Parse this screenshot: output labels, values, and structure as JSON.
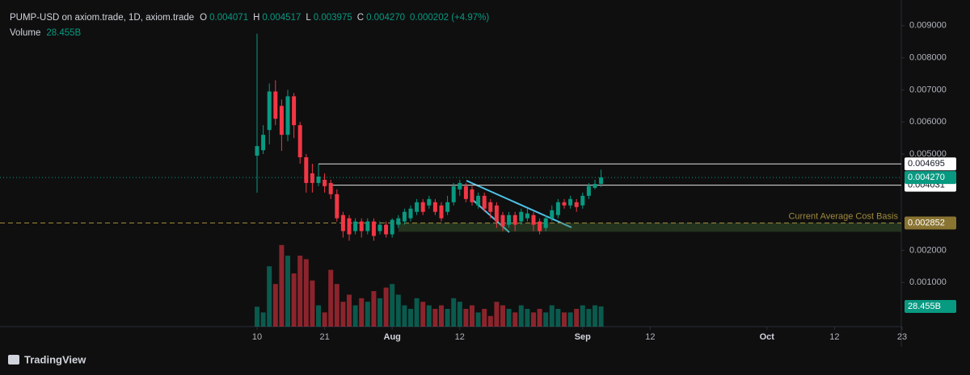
{
  "chart_data": {
    "type": "candlestick",
    "title": "PUMP-USD on axiom.trade, 1D, axiom.trade",
    "header": [
      {
        "label": "O",
        "value": "0.004071"
      },
      {
        "label": "H",
        "value": "0.004517"
      },
      {
        "label": "L",
        "value": "0.003975"
      },
      {
        "label": "C",
        "value": "0.004270"
      }
    ],
    "change": "0.000202 (+4.97%)",
    "volume_title": "Volume",
    "footer": "TradingView",
    "up_color": "#089981",
    "down_color": "#f23645",
    "categories": [
      "Jul 10",
      "Jul 11",
      "Jul 12",
      "Jul 13",
      "Jul 14",
      "Jul 15",
      "Jul 16",
      "Jul 17",
      "Jul 18",
      "Jul 19",
      "Jul 20",
      "Jul 21",
      "Jul 22",
      "Jul 23",
      "Jul 24",
      "Jul 25",
      "Jul 26",
      "Jul 27",
      "Jul 28",
      "Jul 29",
      "Jul 30",
      "Jul 31",
      "Aug 1",
      "Aug 2",
      "Aug 3",
      "Aug 4",
      "Aug 5",
      "Aug 6",
      "Aug 7",
      "Aug 8",
      "Aug 9",
      "Aug 10",
      "Aug 11",
      "Aug 12",
      "Aug 13",
      "Aug 14",
      "Aug 15",
      "Aug 16",
      "Aug 17",
      "Aug 18",
      "Aug 19",
      "Aug 20",
      "Aug 21",
      "Aug 22",
      "Aug 23",
      "Aug 24",
      "Aug 25",
      "Aug 26",
      "Aug 27",
      "Aug 28",
      "Aug 29",
      "Aug 30",
      "Aug 31",
      "Sep 1",
      "Sep 2",
      "Sep 3",
      "Sep 4"
    ],
    "open": [
      0.00495,
      0.00512,
      0.00575,
      0.00695,
      0.0065,
      0.0056,
      0.0068,
      0.0059,
      0.0049,
      0.0044,
      0.0041,
      0.0042,
      0.0041,
      0.00375,
      0.0031,
      0.003,
      0.0026,
      0.0029,
      0.0026,
      0.0029,
      0.0026,
      0.0028,
      0.0025,
      0.0028,
      0.0029,
      0.003,
      0.0032,
      0.0035,
      0.0034,
      0.0035,
      0.0034,
      0.0032,
      0.0035,
      0.0039,
      0.004,
      0.0039,
      0.0034,
      0.0037,
      0.0035,
      0.0034,
      0.0031,
      0.0028,
      0.0031,
      0.0029,
      0.003,
      0.0031,
      0.0029,
      0.0027,
      0.003,
      0.0031,
      0.0035,
      0.0034,
      0.0035,
      0.0034,
      0.0037,
      0.00395,
      0.004071
    ],
    "high": [
      0.00875,
      0.0059,
      0.0072,
      0.0073,
      0.0067,
      0.007,
      0.0069,
      0.006,
      0.005,
      0.0047,
      0.00469,
      0.0044,
      0.0042,
      0.0039,
      0.0032,
      0.0031,
      0.003,
      0.003,
      0.003,
      0.003,
      0.0029,
      0.0029,
      0.003,
      0.0031,
      0.0033,
      0.0034,
      0.0036,
      0.0036,
      0.0037,
      0.0036,
      0.0035,
      0.0037,
      0.0041,
      0.0042,
      0.0041,
      0.004,
      0.0038,
      0.0038,
      0.0036,
      0.0035,
      0.0032,
      0.0032,
      0.0032,
      0.0033,
      0.0033,
      0.0032,
      0.003,
      0.0031,
      0.0034,
      0.0036,
      0.0036,
      0.0037,
      0.0036,
      0.0038,
      0.0041,
      0.0042,
      0.004517
    ],
    "low": [
      0.0038,
      0.005,
      0.0053,
      0.0059,
      0.0051,
      0.0054,
      0.0055,
      0.0047,
      0.0038,
      0.0038,
      0.004,
      0.0038,
      0.0036,
      0.0029,
      0.0024,
      0.0023,
      0.0025,
      0.0024,
      0.0025,
      0.0023,
      0.0025,
      0.0024,
      0.0024,
      0.0027,
      0.0028,
      0.0029,
      0.0031,
      0.0031,
      0.0033,
      0.0031,
      0.0029,
      0.0031,
      0.0034,
      0.0037,
      0.0035,
      0.0034,
      0.0033,
      0.0032,
      0.003,
      0.0027,
      0.0026,
      0.0027,
      0.0026,
      0.0028,
      0.0029,
      0.0026,
      0.0025,
      0.0026,
      0.0029,
      0.003,
      0.0033,
      0.0033,
      0.0032,
      0.0033,
      0.0036,
      0.0039,
      0.003975
    ],
    "close": [
      0.00525,
      0.0056,
      0.00695,
      0.0061,
      0.0056,
      0.0068,
      0.0059,
      0.0049,
      0.0041,
      0.0041,
      0.0043,
      0.004,
      0.00375,
      0.003,
      0.0026,
      0.0025,
      0.0029,
      0.0026,
      0.0029,
      0.00245,
      0.0028,
      0.0025,
      0.00295,
      0.003,
      0.0032,
      0.0033,
      0.0035,
      0.0032,
      0.0036,
      0.0032,
      0.003,
      0.0035,
      0.004,
      0.0041,
      0.0036,
      0.0035,
      0.0037,
      0.0033,
      0.0032,
      0.0029,
      0.00275,
      0.0031,
      0.0028,
      0.0032,
      0.00315,
      0.0028,
      0.0026,
      0.003,
      0.00325,
      0.0035,
      0.0034,
      0.0036,
      0.00335,
      0.0037,
      0.004,
      0.00407,
      0.00427
    ],
    "volume": {
      "name": "Volume",
      "values": [
        28,
        20,
        85,
        60,
        115,
        100,
        75,
        100,
        95,
        65,
        30,
        20,
        80,
        60,
        35,
        45,
        30,
        40,
        35,
        50,
        40,
        55,
        60,
        45,
        30,
        25,
        40,
        35,
        30,
        25,
        30,
        25,
        40,
        35,
        25,
        30,
        20,
        25,
        15,
        35,
        30,
        25,
        20,
        30,
        25,
        20,
        25,
        20,
        30,
        25,
        20,
        20,
        25,
        30,
        25,
        30,
        28.455
      ],
      "last_label": "28.455B"
    },
    "ylim": [
      -0.000375,
      0.0098
    ],
    "yticks": [
      {
        "value": 0.001,
        "label": "0.001000"
      },
      {
        "value": 0.002,
        "label": "0.002000"
      },
      {
        "value": 0.005,
        "label": "0.005000"
      },
      {
        "value": 0.006,
        "label": "0.006000"
      },
      {
        "value": 0.007,
        "label": "0.007000"
      },
      {
        "value": 0.008,
        "label": "0.008000"
      },
      {
        "value": 0.009,
        "label": "0.009000"
      }
    ],
    "xticks": [
      {
        "value": "Jul 10",
        "label": "10"
      },
      {
        "value": "Jul 21",
        "label": "21"
      },
      {
        "value": "Aug 1",
        "label": "Aug"
      },
      {
        "value": "Aug 12",
        "label": "12"
      },
      {
        "value": "Sep 1",
        "label": "Sep"
      },
      {
        "value": "Sep 12",
        "label": "12"
      },
      {
        "value": "Oct 1",
        "label": "Oct"
      },
      {
        "value": "Oct 12",
        "label": "12"
      },
      {
        "value": "Oct 23",
        "label": "23"
      }
    ],
    "price_lines": [
      {
        "value": 0.004695,
        "label": "0.004695",
        "from": "Jul 20"
      },
      {
        "value": 0.004031,
        "label": "0.004031",
        "from": "Jul 22"
      }
    ],
    "last_price": {
      "value": 0.00427,
      "label": "0.004270"
    },
    "cost_basis": {
      "value": 0.002852,
      "label": "0.002852",
      "text": "Current Average Cost Basis"
    },
    "zone": {
      "from": "Aug 2",
      "range": [
        0.00258,
        0.002852
      ]
    }
  }
}
